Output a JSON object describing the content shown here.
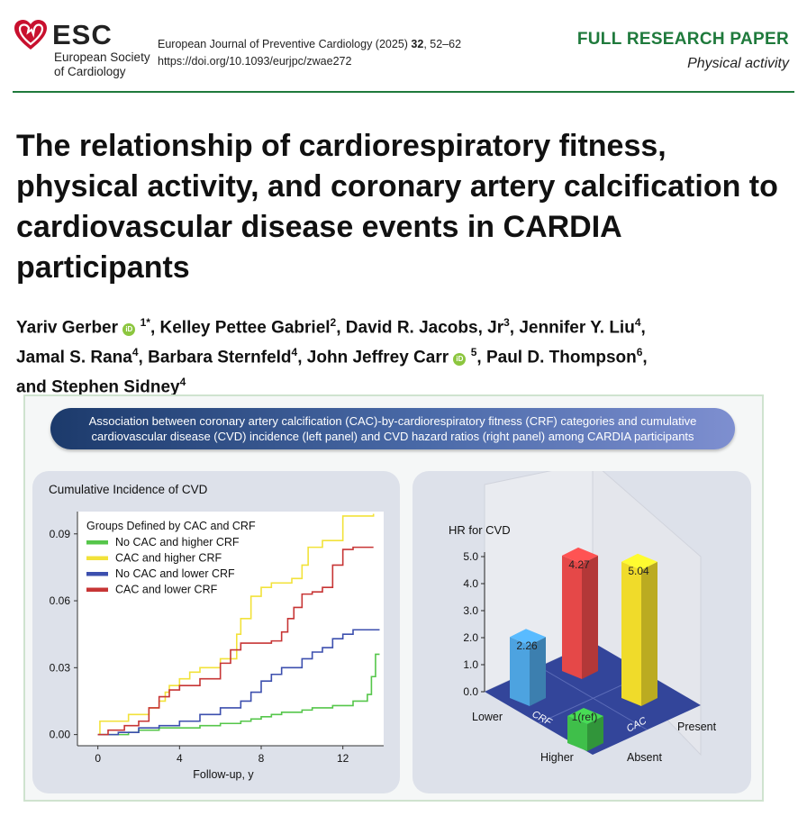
{
  "header": {
    "logo_word": "ESC",
    "logo_line1": "European Society",
    "logo_line2": "of Cardiology",
    "journal_prefix": "European Journal of Preventive Cardiology (2025) ",
    "journal_volume": "32",
    "journal_pages": ", 52–62",
    "doi": "https://doi.org/10.1093/eurjpc/zwae272",
    "paper_type": "FULL RESEARCH PAPER",
    "paper_subtype": "Physical activity",
    "colors": {
      "accent_green": "#1f7a3c",
      "logo_red": "#c8102e"
    }
  },
  "title": "The relationship of cardiorespiratory fitness, physical activity, and coronary artery calcification to cardiovascular disease events in CARDIA participants",
  "authors": [
    {
      "name": "Yariv Gerber",
      "orcid": true,
      "sup": "1",
      "mark": "*"
    },
    {
      "name": "Kelley Pettee Gabriel",
      "orcid": false,
      "sup": "2"
    },
    {
      "name": "David R. Jacobs, Jr",
      "orcid": false,
      "sup": "3"
    },
    {
      "name": "Jennifer Y. Liu",
      "orcid": false,
      "sup": "4"
    },
    {
      "name": "Jamal S. Rana",
      "orcid": false,
      "sup": "4"
    },
    {
      "name": "Barbara Sternfeld",
      "orcid": false,
      "sup": "4"
    },
    {
      "name": "John Jeffrey Carr",
      "orcid": true,
      "sup": "5"
    },
    {
      "name": "Paul D. Thompson",
      "orcid": false,
      "sup": "6"
    },
    {
      "name": "Stephen Sidney",
      "orcid": false,
      "sup": "4"
    }
  ],
  "orcid_icon_text": "iD",
  "abstract": {
    "banner_line1": "Association between coronary artery calcification (CAC)-by-cardiorespiratory fitness (CRF) categories and cumulative",
    "banner_line2": "cardiovascular disease (CVD) incidence (left panel) and CVD hazard ratios (right panel) among CARDIA participants"
  },
  "chart_data": [
    {
      "type": "line",
      "title": "Cumulative Incidence of CVD",
      "xlabel": "Follow-up, y",
      "ylabel": "",
      "xlim": [
        -1,
        14
      ],
      "ylim": [
        -0.005,
        0.1
      ],
      "xticks": [
        0,
        4,
        8,
        12
      ],
      "yticks": [
        0,
        0.03,
        0.06,
        0.09
      ],
      "ytick_labels": [
        "0.00",
        "0.03",
        "0.06",
        "0.09"
      ],
      "legend_title": "Groups Defined by CAC and CRF",
      "legend_position": "top-left",
      "grid": false,
      "series": [
        {
          "name": "No CAC and higher CRF",
          "color": "#55c64a",
          "points": [
            [
              0,
              0
            ],
            [
              1.5,
              0.001
            ],
            [
              2,
              0.002
            ],
            [
              3,
              0.003
            ],
            [
              4,
              0.003
            ],
            [
              5,
              0.004
            ],
            [
              6,
              0.005
            ],
            [
              7,
              0.006
            ],
            [
              7.5,
              0.007
            ],
            [
              8,
              0.008
            ],
            [
              8.5,
              0.009
            ],
            [
              9,
              0.01
            ],
            [
              10,
              0.011
            ],
            [
              10.5,
              0.012
            ],
            [
              11.5,
              0.013
            ],
            [
              12.5,
              0.015
            ],
            [
              13.2,
              0.018
            ],
            [
              13.4,
              0.026
            ],
            [
              13.6,
              0.036
            ],
            [
              13.8,
              0.036
            ]
          ]
        },
        {
          "name": "CAC and higher CRF",
          "color": "#f2e23a",
          "points": [
            [
              0,
              0
            ],
            [
              0.1,
              0.006
            ],
            [
              1,
              0.006
            ],
            [
              1.5,
              0.009
            ],
            [
              2.5,
              0.012
            ],
            [
              3,
              0.015
            ],
            [
              3.3,
              0.019
            ],
            [
              3.5,
              0.022
            ],
            [
              4,
              0.025
            ],
            [
              4.5,
              0.028
            ],
            [
              5,
              0.03
            ],
            [
              6,
              0.034
            ],
            [
              6.8,
              0.045
            ],
            [
              7,
              0.052
            ],
            [
              7.5,
              0.062
            ],
            [
              8,
              0.066
            ],
            [
              8.5,
              0.068
            ],
            [
              9.5,
              0.07
            ],
            [
              10,
              0.076
            ],
            [
              10.3,
              0.084
            ],
            [
              11,
              0.087
            ],
            [
              12,
              0.098
            ],
            [
              13.5,
              0.099
            ]
          ]
        },
        {
          "name": "No CAC and lower CRF",
          "color": "#3c4fae",
          "points": [
            [
              0,
              0
            ],
            [
              1,
              0.001
            ],
            [
              2,
              0.003
            ],
            [
              3,
              0.004
            ],
            [
              4,
              0.006
            ],
            [
              5,
              0.009
            ],
            [
              6,
              0.012
            ],
            [
              7,
              0.015
            ],
            [
              7.5,
              0.019
            ],
            [
              8,
              0.024
            ],
            [
              8.5,
              0.027
            ],
            [
              9,
              0.03
            ],
            [
              10,
              0.034
            ],
            [
              10.5,
              0.037
            ],
            [
              11,
              0.039
            ],
            [
              11.5,
              0.043
            ],
            [
              12,
              0.045
            ],
            [
              12.5,
              0.047
            ],
            [
              13.8,
              0.047
            ]
          ]
        },
        {
          "name": "CAC and lower CRF",
          "color": "#c73535",
          "points": [
            [
              0,
              0
            ],
            [
              0.5,
              0.002
            ],
            [
              1.3,
              0.004
            ],
            [
              2,
              0.006
            ],
            [
              2.5,
              0.012
            ],
            [
              3,
              0.017
            ],
            [
              3.5,
              0.02
            ],
            [
              4,
              0.022
            ],
            [
              5,
              0.025
            ],
            [
              6,
              0.032
            ],
            [
              6.5,
              0.038
            ],
            [
              7,
              0.041
            ],
            [
              8.5,
              0.042
            ],
            [
              9,
              0.046
            ],
            [
              9.3,
              0.052
            ],
            [
              9.6,
              0.057
            ],
            [
              10,
              0.063
            ],
            [
              10.5,
              0.064
            ],
            [
              11,
              0.066
            ],
            [
              11.5,
              0.076
            ],
            [
              12,
              0.083
            ],
            [
              12.5,
              0.084
            ],
            [
              13.5,
              0.084
            ]
          ]
        }
      ]
    },
    {
      "type": "bar",
      "title": "HR for CVD",
      "ylim": [
        0,
        5.0
      ],
      "yticks": [
        "0.0",
        "1.0",
        "2.0",
        "3.0",
        "4.0",
        "5.0"
      ],
      "x_axis_label": "CRF",
      "depth_axis_label": "CAC",
      "axis_ticks": {
        "crf_lower": "Lower",
        "crf_higher": "Higher",
        "cac_absent": "Absent",
        "cac_present": "Present"
      },
      "bars": [
        {
          "crf": "Lower",
          "cac": "Absent",
          "value": 2.26,
          "label": "2.26",
          "color": "#4da3e0"
        },
        {
          "crf": "Lower",
          "cac": "Present",
          "value": 4.27,
          "label": "4.27",
          "color": "#e54848"
        },
        {
          "crf": "Higher",
          "cac": "Present",
          "value": 5.04,
          "label": "5.04",
          "color": "#f0db2a"
        },
        {
          "crf": "Higher",
          "cac": "Absent",
          "value": 1.0,
          "label": "1(ref)",
          "color": "#3fbf4a"
        }
      ]
    }
  ]
}
